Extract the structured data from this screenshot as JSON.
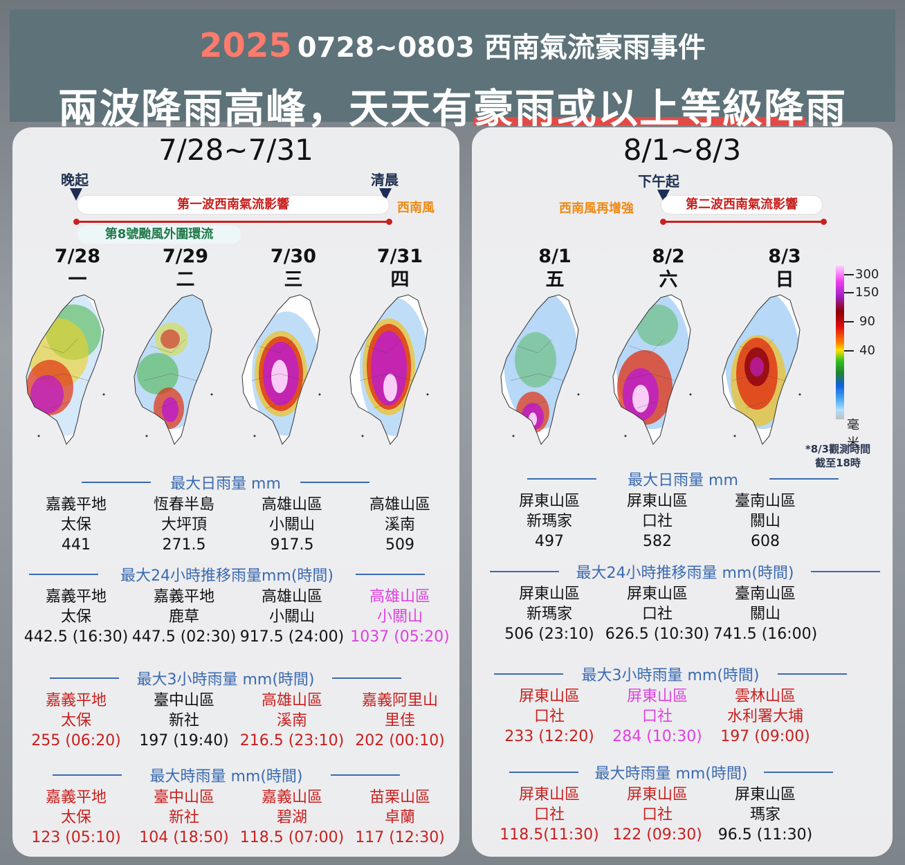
{
  "header": {
    "year": "2025",
    "subtitle": "0728~0803 西南氣流豪雨事件",
    "headline_pre": "兩波降雨高峰，天天有",
    "headline_hl": "豪雨或以上等級降",
    "headline_post": "雨"
  },
  "left": {
    "title": "7/28~7/31",
    "start_label": "晚起",
    "end_label": "清晨",
    "wave_bar": "第一波西南氣流影響",
    "wind_label": "西南風",
    "typhoon_bar": "第8號颱風外圍環流",
    "days": [
      {
        "date": "7/28",
        "weekday": "一"
      },
      {
        "date": "7/29",
        "weekday": "二"
      },
      {
        "date": "7/30",
        "weekday": "三"
      },
      {
        "date": "7/31",
        "weekday": "四"
      }
    ],
    "sections": [
      {
        "title": "最大日雨量 mm",
        "items": [
          {
            "l1": "嘉義平地",
            "l2": "太保",
            "l3": "441",
            "color": "k"
          },
          {
            "l1": "恆春半島",
            "l2": "大坪頂",
            "l3": "271.5",
            "color": "k"
          },
          {
            "l1": "高雄山區",
            "l2": "小關山",
            "l3": "917.5",
            "color": "k"
          },
          {
            "l1": "高雄山區",
            "l2": "溪南",
            "l3": "509",
            "color": "k"
          }
        ]
      },
      {
        "title": "最大24小時推移雨量mm(時間)",
        "items": [
          {
            "l1": "嘉義平地",
            "l2": "太保",
            "l3": "442.5 (16:30)",
            "color": "k"
          },
          {
            "l1": "嘉義平地",
            "l2": "鹿草",
            "l3": "447.5 (02:30)",
            "color": "k"
          },
          {
            "l1": "高雄山區",
            "l2": "小關山",
            "l3": "917.5 (24:00)",
            "color": "k"
          },
          {
            "l1": "高雄山區",
            "l2": "小關山",
            "l3": "1037 (05:20)",
            "color": "m"
          }
        ]
      },
      {
        "title": "最大3小時雨量 mm(時間)",
        "items": [
          {
            "l1": "嘉義平地",
            "l2": "太保",
            "l3": "255 (06:20)",
            "color": "r"
          },
          {
            "l1": "臺中山區",
            "l2": "新社",
            "l3": "197 (19:40)",
            "color": "k"
          },
          {
            "l1": "高雄山區",
            "l2": "溪南",
            "l3": "216.5 (23:10)",
            "color": "r"
          },
          {
            "l1": "嘉義阿里山",
            "l2": "里佳",
            "l3": "202 (00:10)",
            "color": "r"
          }
        ]
      },
      {
        "title": "最大時雨量 mm(時間)",
        "items": [
          {
            "l1": "嘉義平地",
            "l2": "太保",
            "l3": "123 (05:10)",
            "color": "r"
          },
          {
            "l1": "臺中山區",
            "l2": "新社",
            "l3": "104 (18:50)",
            "color": "r"
          },
          {
            "l1": "嘉義山區",
            "l2": "碧湖",
            "l3": "118.5 (07:00)",
            "color": "r"
          },
          {
            "l1": "苗栗山區",
            "l2": "卓蘭",
            "l3": "117 (12:30)",
            "color": "r"
          }
        ]
      }
    ]
  },
  "right": {
    "title": "8/1~8/3",
    "start_label": "下午起",
    "wind_label": "西南風再增強",
    "wave_bar": "第二波西南氣流影響",
    "days": [
      {
        "date": "8/1",
        "weekday": "五"
      },
      {
        "date": "8/2",
        "weekday": "六"
      },
      {
        "date": "8/3",
        "weekday": "日"
      }
    ],
    "legend": {
      "ticks": [
        "300",
        "150",
        "90",
        "40"
      ],
      "unit": "毫米"
    },
    "note_l1": "*8/3觀測時間",
    "note_l2": "截至18時",
    "sections": [
      {
        "title": "最大日雨量 mm",
        "items": [
          {
            "l1": "屏東山區",
            "l2": "新瑪家",
            "l3": "497",
            "color": "k"
          },
          {
            "l1": "屏東山區",
            "l2": "口社",
            "l3": "582",
            "color": "k"
          },
          {
            "l1": "臺南山區",
            "l2": "關山",
            "l3": "608",
            "color": "k"
          }
        ]
      },
      {
        "title": "最大24小時推移雨量 mm(時間)",
        "items": [
          {
            "l1": "屏東山區",
            "l2": "新瑪家",
            "l3": "506 (23:10)",
            "color": "k"
          },
          {
            "l1": "屏東山區",
            "l2": "口社",
            "l3": "626.5 (10:30)",
            "color": "k"
          },
          {
            "l1": "臺南山區",
            "l2": "關山",
            "l3": "741.5 (16:00)",
            "color": "k"
          }
        ]
      },
      {
        "title": "最大3小時雨量 mm(時間)",
        "items": [
          {
            "l1": "屏東山區",
            "l2": "口社",
            "l3": "233 (12:20)",
            "color": "r"
          },
          {
            "l1": "屏東山區",
            "l2": "口社",
            "l3": "284 (10:30)",
            "color": "m"
          },
          {
            "l1": "雲林山區",
            "l2": "水利署大埔",
            "l3": "197 (09:00)",
            "color": "r"
          }
        ]
      },
      {
        "title": "最大時雨量 mm(時間)",
        "items": [
          {
            "l1": "屏東山區",
            "l2": "口社",
            "l3": "118.5(11:30)",
            "color": "r"
          },
          {
            "l1": "屏東山區",
            "l2": "口社",
            "l3": "122 (09:30)",
            "color": "r"
          },
          {
            "l1": "屏東山區",
            "l2": "瑪家",
            "l3": "96.5 (11:30)",
            "color": "k"
          }
        ]
      }
    ]
  },
  "colors": {
    "header_bg": "#5d7279",
    "accent_red": "#c8201e",
    "magenta": "#e040e0",
    "orange": "#f08a12",
    "section_blue": "#3a6ab0"
  }
}
